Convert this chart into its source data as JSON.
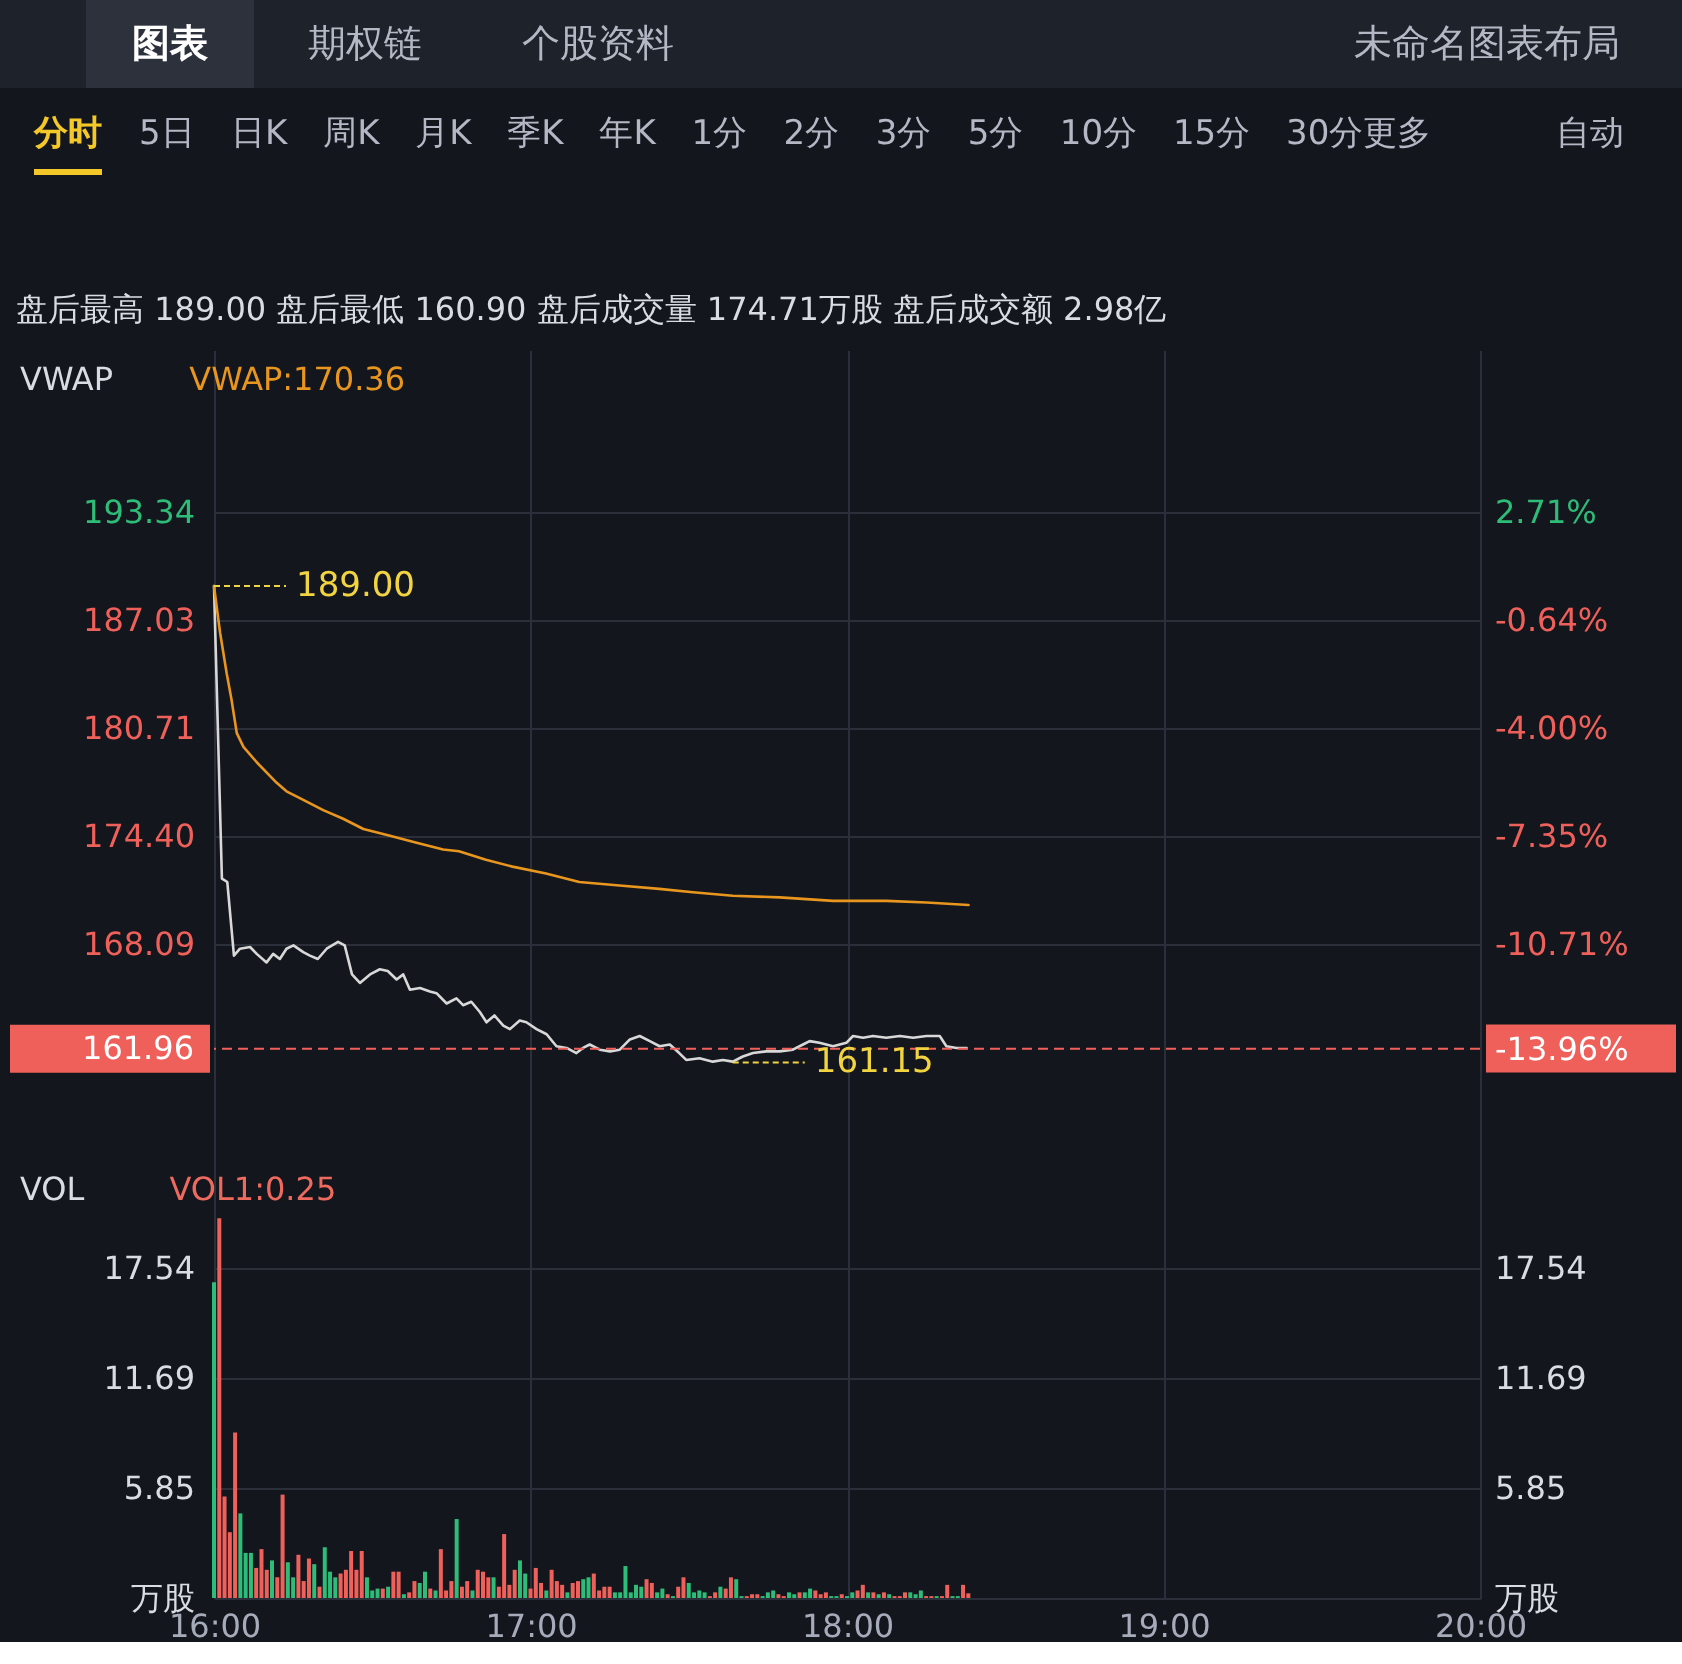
{
  "chart_data": [
    {
      "type": "other",
      "annotations": [
        "图表",
        "期权链",
        "个股资料",
        "未命名图表布局"
      ]
    },
    {
      "type": "other",
      "annotations": [
        "分时",
        "5日",
        "日K",
        "周K",
        "月K",
        "季K",
        "年K",
        "1分",
        "2分",
        "3分",
        "5分",
        "10分",
        "15分",
        "30分更多",
        "自动"
      ]
    },
    {
      "type": "line",
      "title": "VWAP",
      "subtitle": "盘后最高 189.00 盘后最低 160.90 盘后成交量 174.71万股 盘后成交额 2.98亿",
      "series": [
        {
          "color": "#d8d8d8",
          "x": [
            16,
            16.025,
            16.042,
            16.063,
            16.082,
            16.114,
            16.135,
            16.166,
            16.187,
            16.208,
            16.229,
            16.251,
            16.282,
            16.303,
            16.328,
            16.356,
            16.392,
            16.413,
            16.436,
            16.461,
            16.493,
            16.524,
            16.549,
            16.577,
            16.598,
            16.619,
            16.651,
            16.682,
            16.703,
            16.735,
            16.766,
            16.787,
            16.813,
            16.84,
            16.861,
            16.886,
            16.914,
            16.935,
            16.966,
            16.987,
            17.019,
            17.051,
            17.082,
            17.114,
            17.145,
            17.166,
            17.187,
            17.219,
            17.251,
            17.282,
            17.314,
            17.345,
            17.377,
            17.408,
            17.44,
            17.47,
            17.492,
            17.534,
            17.576,
            17.608,
            17.639,
            17.671,
            17.703,
            17.745,
            17.787,
            17.829,
            17.861,
            17.882,
            17.913,
            17.956,
            17.998,
            18.019,
            18.051,
            18.082,
            18.124,
            18.167,
            18.209,
            18.251,
            18.293,
            18.314,
            18.346,
            18.378
          ],
          "values": [
            189.0,
            171.9,
            171.7,
            167.4,
            167.8,
            167.9,
            167.5,
            167.0,
            167.5,
            167.2,
            167.8,
            168.0,
            167.6,
            167.4,
            167.2,
            167.8,
            168.2,
            168.0,
            166.3,
            165.8,
            166.3,
            166.6,
            166.5,
            166.0,
            166.3,
            165.4,
            165.5,
            165.3,
            165.2,
            164.6,
            164.9,
            164.5,
            164.7,
            164.1,
            163.5,
            163.9,
            163.3,
            163.1,
            163.6,
            163.5,
            163.1,
            162.8,
            162.1,
            162.0,
            161.7,
            162.0,
            162.2,
            161.9,
            161.8,
            161.9,
            162.5,
            162.7,
            162.4,
            162.1,
            162.2,
            161.7,
            161.3,
            161.4,
            161.2,
            161.3,
            161.2,
            161.5,
            161.7,
            161.8,
            161.8,
            161.9,
            162.2,
            162.4,
            162.3,
            162.1,
            162.3,
            162.7,
            162.6,
            162.7,
            162.6,
            162.7,
            162.6,
            162.7,
            162.7,
            162.1,
            162.0,
            162.0
          ]
        },
        {
          "name": "VWAP:170.36",
          "color": "#e8961e",
          "x": [
            16,
            16.019,
            16.04,
            16.055,
            16.072,
            16.093,
            16.135,
            16.198,
            16.229,
            16.282,
            16.345,
            16.408,
            16.472,
            16.556,
            16.64,
            16.724,
            16.774,
            16.859,
            16.943,
            17.049,
            17.154,
            17.281,
            17.407,
            17.513,
            17.639,
            17.787,
            17.956,
            18.124,
            18.251,
            18.384
          ],
          "values": [
            189.0,
            186.3,
            183.9,
            182.4,
            180.4,
            179.6,
            178.7,
            177.5,
            177.0,
            176.5,
            175.9,
            175.4,
            174.8,
            174.4,
            174.0,
            173.6,
            173.5,
            173.0,
            172.6,
            172.2,
            171.7,
            171.5,
            171.3,
            171.1,
            170.9,
            170.8,
            170.6,
            170.6,
            170.5,
            170.36
          ]
        }
      ],
      "xlim": [
        16,
        20
      ],
      "xticks": [
        16,
        17,
        18,
        19,
        20
      ],
      "ylim": [
        155.45,
        202.8
      ],
      "yticks": [
        193.34,
        187.03,
        180.71,
        {
          "value": 174.4,
          "label": "174.40"
        },
        168.09
      ],
      "y2lim": [
        -17.42,
        7.74
      ],
      "y2ticks": [
        {
          "value": 2.71,
          "label": "2.71%"
        },
        {
          "value": -0.64,
          "label": "-0.64%"
        },
        {
          "value": -4,
          "label": "-4.00%"
        },
        {
          "value": -7.35,
          "label": "-7.35%"
        },
        {
          "value": -10.71,
          "label": "-10.71%"
        },
        {
          "value": -13.96,
          "label": "-13.96%"
        }
      ],
      "ref_lines": [
        {
          "axis": "y",
          "value": 161.96,
          "label": "161.96",
          "color": "#f0605a",
          "line_style": "dashed"
        }
      ],
      "annotations": [
        {
          "text": "189.00",
          "x": 16,
          "y": 189.0
        },
        {
          "text": "161.15",
          "x": 17.639,
          "y": 161.15
        }
      ],
      "grid": true,
      "legend": "top left",
      "tick_labels": "y"
    },
    {
      "type": "bar",
      "title": "VOL",
      "annotations": [
        "VOL1:0.25"
      ],
      "x": [
        16,
        16.0167,
        16.0333,
        16.05,
        16.0667,
        16.0833,
        16.1,
        16.1167,
        16.1333,
        16.15,
        16.1667,
        16.1833,
        16.2,
        16.2167,
        16.2333,
        16.25,
        16.2667,
        16.2833,
        16.3,
        16.3167,
        16.3333,
        16.35,
        16.3667,
        16.3833,
        16.4,
        16.4167,
        16.4333,
        16.45,
        16.4667,
        16.4833,
        16.5,
        16.5167,
        16.5333,
        16.55,
        16.5667,
        16.5833,
        16.6,
        16.6167,
        16.6333,
        16.65,
        16.6667,
        16.6833,
        16.7,
        16.7167,
        16.7333,
        16.75,
        16.7667,
        16.7833,
        16.8,
        16.8167,
        16.8333,
        16.85,
        16.8667,
        16.8833,
        16.9,
        16.9167,
        16.9333,
        16.95,
        16.9667,
        16.9833,
        17,
        17.0167,
        17.0333,
        17.05,
        17.0667,
        17.0833,
        17.1,
        17.1167,
        17.1333,
        17.15,
        17.1667,
        17.1833,
        17.2,
        17.2167,
        17.2333,
        17.25,
        17.2667,
        17.2833,
        17.3,
        17.3167,
        17.3333,
        17.35,
        17.3667,
        17.3833,
        17.4,
        17.4167,
        17.4333,
        17.45,
        17.4667,
        17.4833,
        17.5,
        17.5167,
        17.5333,
        17.55,
        17.5667,
        17.5833,
        17.6,
        17.6167,
        17.6333,
        17.65,
        17.6667,
        17.6833,
        17.7,
        17.7167,
        17.7333,
        17.75,
        17.7667,
        17.7833,
        17.8,
        17.8167,
        17.8333,
        17.85,
        17.8667,
        17.8833,
        17.9,
        17.9167,
        17.9333,
        17.95,
        17.9667,
        17.9833,
        18,
        18.0167,
        18.0333,
        18.05,
        18.0667,
        18.0833,
        18.1,
        18.1167,
        18.1333,
        18.15,
        18.1667,
        18.1833,
        18.2,
        18.2167,
        18.2333,
        18.25,
        18.2667,
        18.2833,
        18.3,
        18.3167,
        18.3333,
        18.35,
        18.3667,
        18.3833
      ],
      "values": [
        16.8,
        20.2,
        5.4,
        3.5,
        8.8,
        4.5,
        2.4,
        2.4,
        1.6,
        2.6,
        1.5,
        2.0,
        1.1,
        5.5,
        1.9,
        1.1,
        2.3,
        0.9,
        2.1,
        1.8,
        0.6,
        2.7,
        1.4,
        1.1,
        1.3,
        1.5,
        2.5,
        1.5,
        2.5,
        1.1,
        0.4,
        0.5,
        0.5,
        0.6,
        1.4,
        1.4,
        0.2,
        0.3,
        0.9,
        0.8,
        1.4,
        0.5,
        0.4,
        2.6,
        0.4,
        0.9,
        4.2,
        0.6,
        0.9,
        0.4,
        1.5,
        1.4,
        1.1,
        1.1,
        0.6,
        3.4,
        0.7,
        1.5,
        2.0,
        1.3,
        0.5,
        1.6,
        0.8,
        0.4,
        1.5,
        0.9,
        0.7,
        0.3,
        0.8,
        0.9,
        1.0,
        1.1,
        1.3,
        0.4,
        0.6,
        0.6,
        0.3,
        0.3,
        1.7,
        0.3,
        0.7,
        0.6,
        1.0,
        0.8,
        0.3,
        0.5,
        0.2,
        0.1,
        0.6,
        1.1,
        0.8,
        0.3,
        0.4,
        0.3,
        0.1,
        0.3,
        0.6,
        0.5,
        1.1,
        1.0,
        0.1,
        0.1,
        0.2,
        0.2,
        0.1,
        0.3,
        0.4,
        0.2,
        0.1,
        0.3,
        0.2,
        0.3,
        0.3,
        0.5,
        0.4,
        0.2,
        0.3,
        0.1,
        0.1,
        0.2,
        0.1,
        0.3,
        0.4,
        0.7,
        0.3,
        0.3,
        0.2,
        0.3,
        0.2,
        0.1,
        0.1,
        0.3,
        0.3,
        0.2,
        0.4,
        0.1,
        0.1,
        0.1,
        0.1,
        0.7,
        0.1,
        0.1,
        0.7,
        0.25
      ],
      "colors": [
        "#2ebd78",
        "#f0605a",
        "#f0605a",
        "#f0605a",
        "#f0605a",
        "#2ebd78",
        "#2ebd78",
        "#2ebd78",
        "#f0605a",
        "#f0605a",
        "#f0605a",
        "#2ebd78",
        "#f0605a",
        "#f0605a",
        "#2ebd78",
        "#2ebd78",
        "#f0605a",
        "#f0605a",
        "#f0605a",
        "#2ebd78",
        "#f0605a",
        "#2ebd78",
        "#2ebd78",
        "#2ebd78",
        "#f0605a",
        "#f0605a",
        "#f0605a",
        "#f0605a",
        "#f0605a",
        "#2ebd78",
        "#2ebd78",
        "#2ebd78",
        "#f0605a",
        "#2ebd78",
        "#f0605a",
        "#f0605a",
        "#2ebd78",
        "#f0605a",
        "#f0605a",
        "#2ebd78",
        "#2ebd78",
        "#f0605a",
        "#2ebd78",
        "#f0605a",
        "#f0605a",
        "#f0605a",
        "#2ebd78",
        "#f0605a",
        "#f0605a",
        "#2ebd78",
        "#f0605a",
        "#f0605a",
        "#f0605a",
        "#2ebd78",
        "#f0605a",
        "#f0605a",
        "#f0605a",
        "#f0605a",
        "#2ebd78",
        "#2ebd78",
        "#f0605a",
        "#f0605a",
        "#f0605a",
        "#2ebd78",
        "#f0605a",
        "#f0605a",
        "#f0605a",
        "#2ebd78",
        "#f0605a",
        "#f0605a",
        "#2ebd78",
        "#2ebd78",
        "#f0605a",
        "#f0605a",
        "#f0605a",
        "#f0605a",
        "#2ebd78",
        "#2ebd78",
        "#2ebd78",
        "#2ebd78",
        "#2ebd78",
        "#2ebd78",
        "#f0605a",
        "#f0605a",
        "#2ebd78",
        "#2ebd78",
        "#f0605a",
        "#2ebd78",
        "#f0605a",
        "#f0605a",
        "#2ebd78",
        "#2ebd78",
        "#2ebd78",
        "#2ebd78",
        "#f0605a",
        "#f0605a",
        "#2ebd78",
        "#f0605a",
        "#f0605a",
        "#2ebd78",
        "#2ebd78",
        "#f0605a",
        "#f0605a",
        "#f0605a",
        "#2ebd78",
        "#2ebd78",
        "#2ebd78",
        "#f0605a",
        "#f0605a",
        "#2ebd78",
        "#2ebd78",
        "#f0605a",
        "#2ebd78",
        "#2ebd78",
        "#f0605a",
        "#f0605a",
        "#f0605a",
        "#2ebd78",
        "#2ebd78",
        "#f0605a",
        "#2ebd78",
        "#2ebd78",
        "#f0605a",
        "#f0605a",
        "#2ebd78",
        "#f0605a",
        "#2ebd78",
        "#f0605a",
        "#2ebd78",
        "#f0605a",
        "#f0605a",
        "#f0605a",
        "#2ebd78",
        "#2ebd78",
        "#2ebd78",
        "#f0605a",
        "#f0605a",
        "#2ebd78",
        "#f0605a",
        "#f0605a",
        "#2ebd78",
        "#2ebd78",
        "#f0605a",
        "#f0605a"
      ],
      "xlim": [
        16,
        20
      ],
      "xticks": [
        {
          "value": 16,
          "label": "16:00"
        },
        {
          "value": 17,
          "label": "17:00"
        },
        {
          "value": 18,
          "label": "18:00"
        },
        {
          "value": 19,
          "label": "19:00"
        },
        {
          "value": 20,
          "label": "20:00"
        }
      ],
      "ylim": [
        0,
        23.3
      ],
      "yticks": [
        {
          "value": 0,
          "label": "万股"
        },
        5.85,
        11.69,
        17.54
      ],
      "y2lim": [
        0,
        23.3
      ],
      "y2ticks": [
        {
          "value": 0,
          "label": "万股"
        },
        5.85,
        11.69,
        17.54
      ],
      "grid": true
    }
  ]
}
